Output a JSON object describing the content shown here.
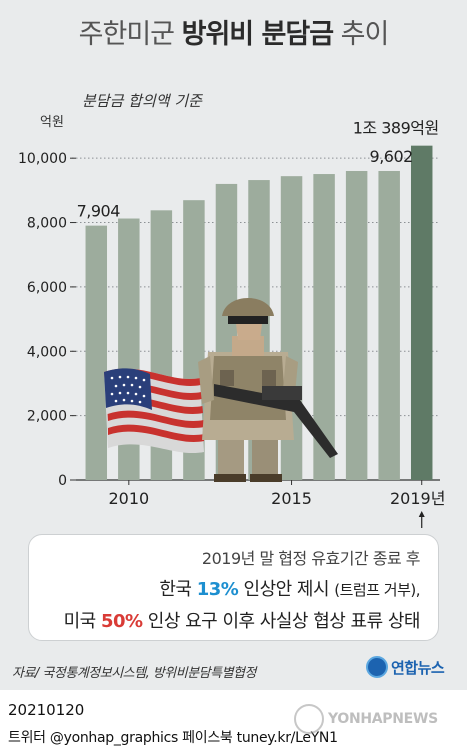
{
  "title": {
    "prefix": "주한미군 ",
    "bold": "방위비 분담금",
    "suffix": " 추이"
  },
  "basis_label": "분담금 합의액 기준",
  "unit_label": "억원",
  "chart_data": {
    "type": "bar",
    "title": "주한미군 방위비 분담금 추이",
    "subtitle": "분담금 합의액 기준",
    "ylabel": "억원",
    "xlabel": "",
    "categories": [
      "2009",
      "2010",
      "2011",
      "2012",
      "2013",
      "2014",
      "2015",
      "2016",
      "2017",
      "2018",
      "2019"
    ],
    "values": [
      7904,
      8125,
      8380,
      8695,
      9200,
      9320,
      9441,
      9507,
      9602,
      9602,
      10389
    ],
    "ylim": [
      0,
      11000
    ],
    "yticks": [
      0,
      2000,
      4000,
      6000,
      8000,
      10000
    ],
    "ytick_labels": [
      "0",
      "2,000",
      "4,000",
      "6,000",
      "8,000",
      "10,000"
    ],
    "xtick_labels": [
      {
        "index": 1,
        "label": "2010"
      },
      {
        "index": 6,
        "label": "2015"
      },
      {
        "index": 10,
        "label": "2019년"
      }
    ],
    "data_labels": [
      {
        "index": 0,
        "label": "7,904"
      },
      {
        "index": 9,
        "label": "9,602"
      },
      {
        "index": 10,
        "label": "1조 389억원"
      }
    ],
    "grid": "horizontal dotted",
    "colors": {
      "bar": "#9dac9d",
      "bar_highlight": "#5f7a66",
      "grid": "#8c9094"
    }
  },
  "note": {
    "line1": "2019년 말 협정 유효기간 종료 후",
    "line2_a": "한국 ",
    "line2_pct": "13%",
    "line2_b": " 인상안 제시 ",
    "line2_c": "(트럼프 거부),",
    "line3_a": "미국 ",
    "line3_pct": "50%",
    "line3_b": " 인상 요구 이후 사실상 협상 표류 상태"
  },
  "source": "자료/ 국정통계정보시스템, 방위비분담특별협정",
  "brand": "연합뉴스",
  "date_code": "20210120",
  "sns": "트위터 @yonhap_graphics  페이스북 tuney.kr/LeYN1",
  "watermark": "YONHAPNEWS",
  "icons": {
    "flag": "us-flag-icon",
    "soldier": "soldier-icon",
    "arrow": "up-arrow-icon"
  }
}
